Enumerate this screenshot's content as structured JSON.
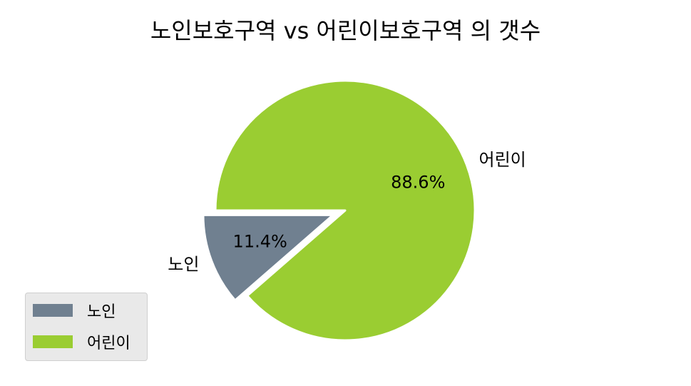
{
  "chart_data": {
    "type": "pie",
    "title": "노인보호구역 vs 어린이보호구역 의 갯수",
    "categories": [
      "노인",
      "어린이"
    ],
    "values": [
      11.4,
      88.6
    ],
    "percent_labels": [
      "11.4%",
      "88.6%"
    ],
    "colors": [
      "#708090",
      "#9acd32"
    ],
    "explode": [
      0.1,
      0
    ],
    "start_angle_deg": 180,
    "legend": {
      "placement": "lower-left",
      "entries": [
        "노인",
        "어린이"
      ]
    }
  }
}
